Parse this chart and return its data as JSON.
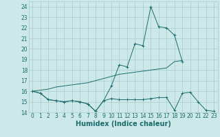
{
  "title": "",
  "xlabel": "Humidex (Indice chaleur)",
  "ylabel": "",
  "background_color": "#cce8e8",
  "grid_color": "#aacccc",
  "line_color": "#1a6b6b",
  "x_values": [
    0,
    1,
    2,
    3,
    4,
    5,
    6,
    7,
    8,
    9,
    10,
    11,
    12,
    13,
    14,
    15,
    16,
    17,
    18,
    19,
    20,
    21,
    22,
    23
  ],
  "series1": [
    16.0,
    15.8,
    15.2,
    15.1,
    15.0,
    15.1,
    15.0,
    14.8,
    14.1,
    15.1,
    15.3,
    15.2,
    15.2,
    15.2,
    15.2,
    15.3,
    15.4,
    15.4,
    14.2,
    15.8,
    15.9,
    15.0,
    14.2,
    14.1
  ],
  "series2": [
    16.0,
    15.8,
    15.2,
    15.1,
    15.0,
    15.1,
    15.0,
    14.8,
    14.1,
    15.1,
    16.5,
    18.5,
    18.3,
    20.5,
    20.3,
    24.0,
    22.1,
    22.0,
    21.3,
    18.8,
    null,
    null,
    null,
    null
  ],
  "series3": [
    16.0,
    16.1,
    16.2,
    16.4,
    16.5,
    16.6,
    16.7,
    16.8,
    17.0,
    17.2,
    17.4,
    17.6,
    17.7,
    17.8,
    17.9,
    18.0,
    18.1,
    18.2,
    18.8,
    18.9,
    null,
    null,
    null,
    null
  ],
  "ylim": [
    14,
    24.5
  ],
  "xlim": [
    -0.5,
    23.5
  ],
  "yticks": [
    14,
    15,
    16,
    17,
    18,
    19,
    20,
    21,
    22,
    23,
    24
  ],
  "xticks": [
    0,
    1,
    2,
    3,
    4,
    5,
    6,
    7,
    8,
    9,
    10,
    11,
    12,
    13,
    14,
    15,
    16,
    17,
    18,
    19,
    20,
    21,
    22,
    23
  ],
  "font_color": "#1a6b6b",
  "tick_fontsize": 5.5,
  "xlabel_fontsize": 7
}
